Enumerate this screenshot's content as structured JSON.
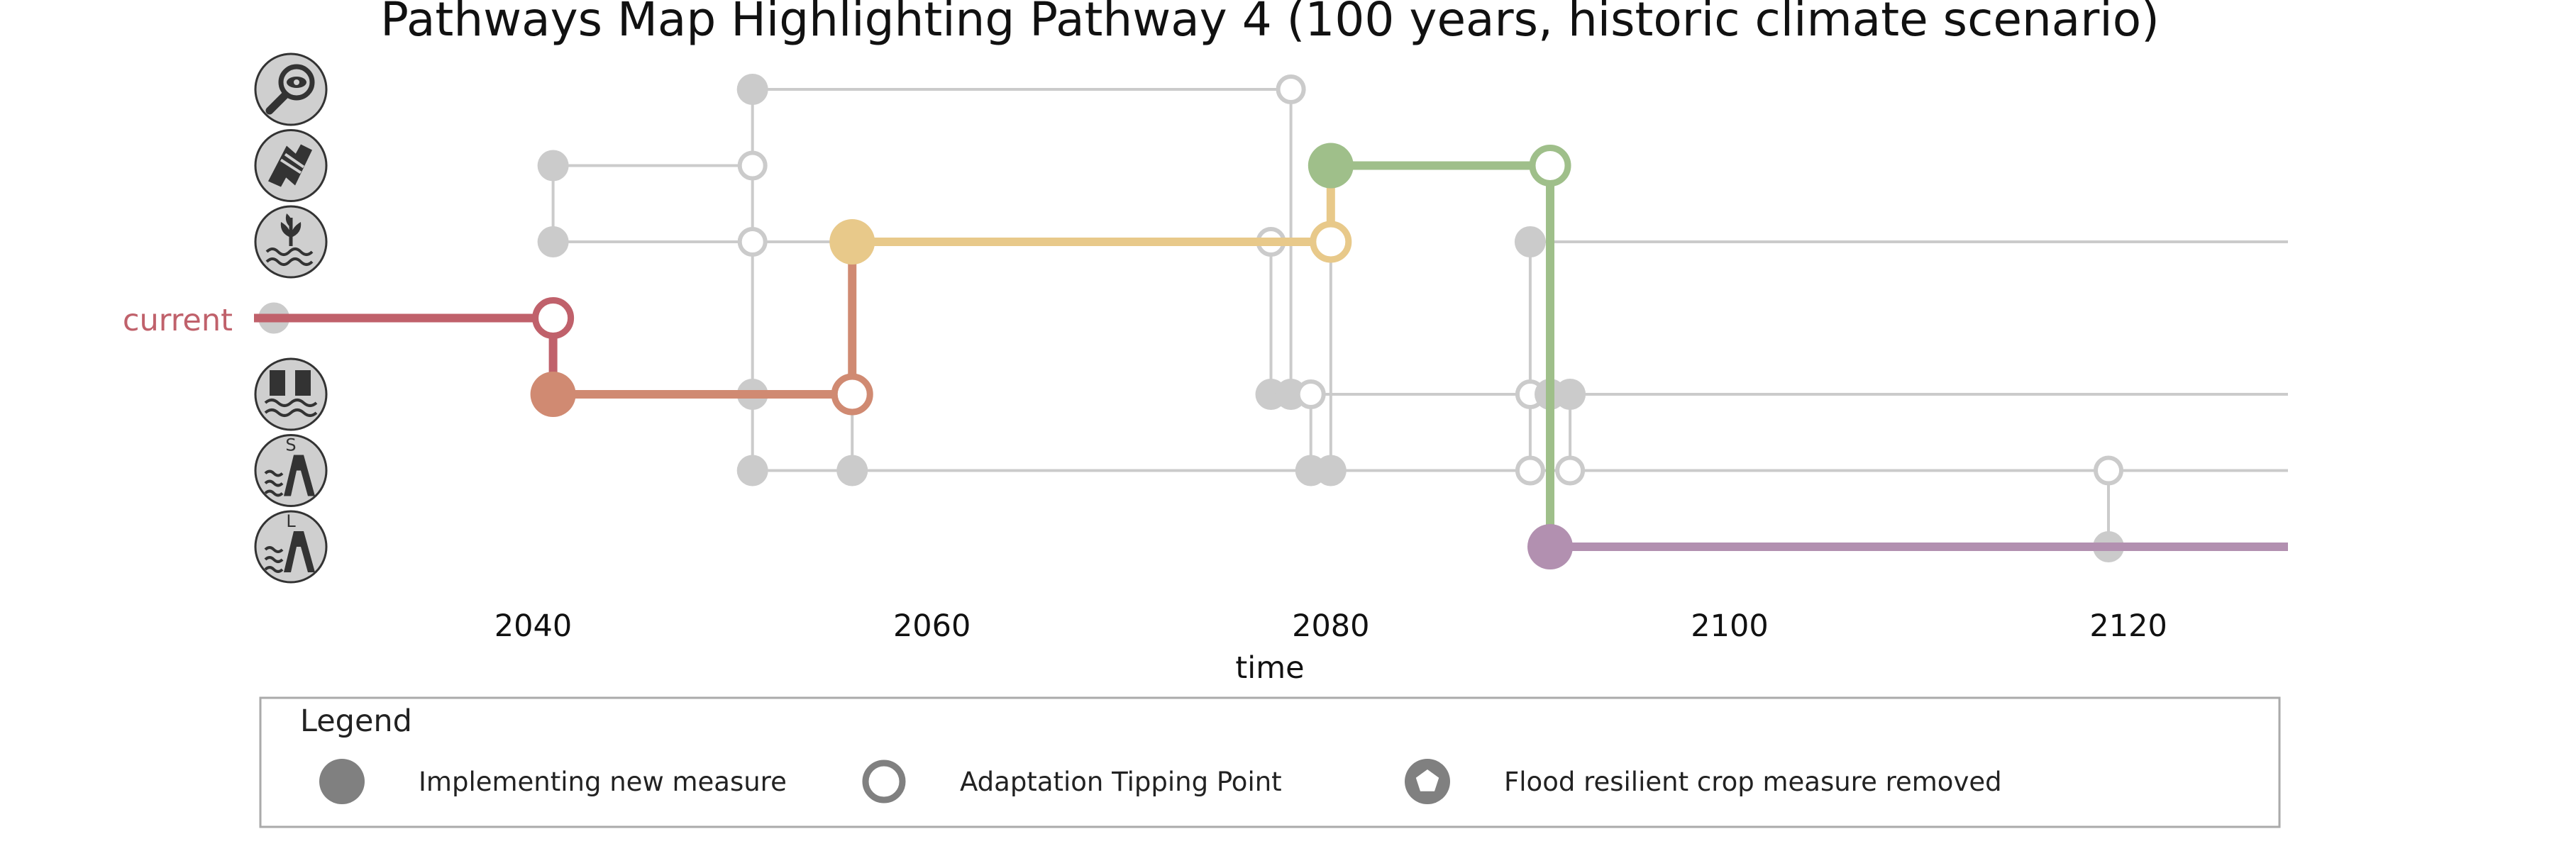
{
  "chart_data": {
    "type": "line",
    "title": "Pathways Map Highlighting Pathway 4 (100 years, historic climate scenario)",
    "xlabel": "time",
    "xlim": [
      2026,
      2128
    ],
    "xticks": [
      2040,
      2060,
      2080,
      2100,
      2120
    ],
    "grid": false,
    "current_label": "current",
    "measures": [
      {
        "row": 0,
        "icon": "monitoring-eye-icon"
      },
      {
        "row": 1,
        "icon": "cooperation-handshake-icon"
      },
      {
        "row": 2,
        "icon": "flood-resilient-crop-icon"
      },
      {
        "row": 3,
        "icon": "current-situation"
      },
      {
        "row": 4,
        "icon": "floodwall-icon"
      },
      {
        "row": 5,
        "icon": "small-dike-icon",
        "icon_letter": "S"
      },
      {
        "row": 6,
        "icon": "large-dike-icon",
        "icon_letter": "L"
      }
    ],
    "background_segments": [
      {
        "row": 0,
        "x0": 2051,
        "x1": 2078
      },
      {
        "row": 1,
        "x0": 2041,
        "x1": 2051
      },
      {
        "row": 2,
        "x0": 2041,
        "x1": 2051
      },
      {
        "row": 2,
        "x0": 2051,
        "x1": 2056
      },
      {
        "row": 2,
        "x0": 2090,
        "x1": 2128
      },
      {
        "row": 4,
        "x0": 2051,
        "x1": 2056
      },
      {
        "row": 4,
        "x0": 2077,
        "x1": 2128
      },
      {
        "row": 5,
        "x0": 2051,
        "x1": 2128
      },
      {
        "row": 6,
        "x0": 2091,
        "x1": 2128
      }
    ],
    "background_connectors": [
      {
        "x": 2041,
        "r0": 1,
        "r1": 2
      },
      {
        "x": 2051,
        "r0": 0,
        "r1": 5
      },
      {
        "x": 2056,
        "r0": 4,
        "r1": 5
      },
      {
        "x": 2077,
        "r0": 2,
        "r1": 4
      },
      {
        "x": 2078,
        "r0": 0,
        "r1": 4
      },
      {
        "x": 2079,
        "r0": 4,
        "r1": 5
      },
      {
        "x": 2080,
        "r0": 2,
        "r1": 5
      },
      {
        "x": 2090,
        "r0": 2,
        "r1": 5
      },
      {
        "x": 2092,
        "r0": 4,
        "r1": 5
      },
      {
        "x": 2119,
        "r0": 5,
        "r1": 6
      }
    ],
    "background_markers": [
      {
        "x": 2027,
        "row": 3,
        "kind": "filled"
      },
      {
        "x": 2041,
        "row": 1,
        "kind": "filled"
      },
      {
        "x": 2041,
        "row": 2,
        "kind": "filled"
      },
      {
        "x": 2051,
        "row": 0,
        "kind": "filled"
      },
      {
        "x": 2051,
        "row": 1,
        "kind": "open"
      },
      {
        "x": 2051,
        "row": 2,
        "kind": "open"
      },
      {
        "x": 2051,
        "row": 4,
        "kind": "filled"
      },
      {
        "x": 2051,
        "row": 5,
        "kind": "filled"
      },
      {
        "x": 2056,
        "row": 5,
        "kind": "filled"
      },
      {
        "x": 2078,
        "row": 0,
        "kind": "open"
      },
      {
        "x": 2077,
        "row": 2,
        "kind": "open"
      },
      {
        "x": 2077,
        "row": 4,
        "kind": "filled"
      },
      {
        "x": 2078,
        "row": 4,
        "kind": "filled"
      },
      {
        "x": 2079,
        "row": 4,
        "kind": "open"
      },
      {
        "x": 2079,
        "row": 5,
        "kind": "filled"
      },
      {
        "x": 2080,
        "row": 5,
        "kind": "filled"
      },
      {
        "x": 2090,
        "row": 2,
        "kind": "filled"
      },
      {
        "x": 2090,
        "row": 4,
        "kind": "open"
      },
      {
        "x": 2091,
        "row": 4,
        "kind": "filled"
      },
      {
        "x": 2092,
        "row": 4,
        "kind": "filled"
      },
      {
        "x": 2090,
        "row": 5,
        "kind": "open"
      },
      {
        "x": 2092,
        "row": 5,
        "kind": "open"
      },
      {
        "x": 2119,
        "row": 5,
        "kind": "open"
      },
      {
        "x": 2119,
        "row": 6,
        "kind": "filled"
      }
    ],
    "highlighted_pathway": [
      {
        "row": 3,
        "x0": 2026,
        "x1": 2041,
        "color": "#c0616b"
      },
      {
        "row": 4,
        "x0": 2041,
        "x1": 2056,
        "color": "#d08a72"
      },
      {
        "row": 2,
        "x0": 2056,
        "x1": 2080,
        "color": "#e8c98a"
      },
      {
        "row": 1,
        "x0": 2080,
        "x1": 2091,
        "color": "#9fbf8a"
      },
      {
        "row": 6,
        "x0": 2091,
        "x1": 2128,
        "color": "#b290b0"
      }
    ],
    "highlighted_connectors": [
      {
        "x": 2041,
        "r0": 3,
        "r1": 4,
        "color": "#c0616b"
      },
      {
        "x": 2056,
        "r0": 4,
        "r1": 2,
        "color": "#d08a72"
      },
      {
        "x": 2080,
        "r0": 2,
        "r1": 1,
        "color": "#e8c98a"
      },
      {
        "x": 2091,
        "r0": 1,
        "r1": 6,
        "color": "#9fbf8a"
      }
    ],
    "highlighted_markers": [
      {
        "x": 2041,
        "row": 3,
        "kind": "open",
        "color": "#c0616b"
      },
      {
        "x": 2041,
        "row": 4,
        "kind": "filled",
        "color": "#d08a72"
      },
      {
        "x": 2056,
        "row": 4,
        "kind": "open",
        "color": "#d08a72"
      },
      {
        "x": 2056,
        "row": 2,
        "kind": "filled",
        "color": "#e8c98a"
      },
      {
        "x": 2080,
        "row": 2,
        "kind": "open",
        "color": "#e8c98a"
      },
      {
        "x": 2080,
        "row": 1,
        "kind": "filled",
        "color": "#9fbf8a"
      },
      {
        "x": 2091,
        "row": 1,
        "kind": "open",
        "color": "#9fbf8a"
      },
      {
        "x": 2091,
        "row": 6,
        "kind": "filled",
        "color": "#b290b0"
      }
    ],
    "legend": {
      "title": "Legend",
      "placement": "bottom",
      "entries": [
        {
          "label": "Implementing new measure",
          "symbol": "filled-circle"
        },
        {
          "label": "Adaptation Tipping Point",
          "symbol": "open-circle"
        },
        {
          "label": "Flood resilient crop measure removed",
          "symbol": "pentagon-in-circle"
        }
      ]
    },
    "colors": {
      "background": "#cbcbcb",
      "current": "#c0616b",
      "legend_symbol": "#808080"
    }
  }
}
